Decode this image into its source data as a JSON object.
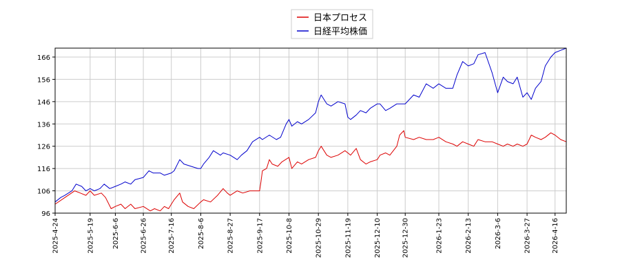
{
  "chart_data": {
    "type": "line",
    "title": "",
    "xlabel": "",
    "ylabel": "",
    "ylim": [
      96,
      170
    ],
    "y_ticks": [
      96,
      106,
      116,
      126,
      136,
      146,
      156,
      166
    ],
    "x_ticks": [
      "2025-4-24",
      "2025-5-19",
      "2025-6-6",
      "2025-6-26",
      "2025-7-16",
      "2025-8-6",
      "2025-8-27",
      "2025-9-17",
      "2025-10-8",
      "2025-10-29",
      "2025-11-19",
      "2025-12-10",
      "2025-12-30",
      "2026-1-23",
      "2026-2-13",
      "2026-3-6",
      "2026-3-27",
      "2026-4-16"
    ],
    "grid": true,
    "legend_position": "top-center",
    "series": [
      {
        "name": "日本プロセス",
        "color": "#dd0000",
        "points": [
          [
            "2025-4-24",
            100
          ],
          [
            "2025-5-1",
            103
          ],
          [
            "2025-5-8",
            106
          ],
          [
            "2025-5-12",
            105
          ],
          [
            "2025-5-16",
            104
          ],
          [
            "2025-5-19",
            106
          ],
          [
            "2025-5-22",
            104
          ],
          [
            "2025-5-27",
            105
          ],
          [
            "2025-5-30",
            103
          ],
          [
            "2025-6-3",
            98
          ],
          [
            "2025-6-6",
            99
          ],
          [
            "2025-6-10",
            100
          ],
          [
            "2025-6-13",
            98
          ],
          [
            "2025-6-17",
            100
          ],
          [
            "2025-6-20",
            98
          ],
          [
            "2025-6-26",
            99
          ],
          [
            "2025-7-1",
            97
          ],
          [
            "2025-7-4",
            98
          ],
          [
            "2025-7-8",
            97
          ],
          [
            "2025-7-11",
            99
          ],
          [
            "2025-7-14",
            98
          ],
          [
            "2025-7-16",
            100
          ],
          [
            "2025-7-18",
            102
          ],
          [
            "2025-7-22",
            105
          ],
          [
            "2025-7-24",
            101
          ],
          [
            "2025-7-28",
            99
          ],
          [
            "2025-8-1",
            98
          ],
          [
            "2025-8-6",
            101
          ],
          [
            "2025-8-8",
            102
          ],
          [
            "2025-8-13",
            101
          ],
          [
            "2025-8-18",
            104
          ],
          [
            "2025-8-22",
            107
          ],
          [
            "2025-8-25",
            105
          ],
          [
            "2025-8-27",
            104
          ],
          [
            "2025-9-1",
            106
          ],
          [
            "2025-9-5",
            105
          ],
          [
            "2025-9-10",
            106
          ],
          [
            "2025-9-15",
            106
          ],
          [
            "2025-9-17",
            106
          ],
          [
            "2025-9-18",
            110
          ],
          [
            "2025-9-19",
            115
          ],
          [
            "2025-9-22",
            116
          ],
          [
            "2025-9-24",
            120
          ],
          [
            "2025-9-26",
            118
          ],
          [
            "2025-9-30",
            117
          ],
          [
            "2025-10-3",
            119
          ],
          [
            "2025-10-8",
            121
          ],
          [
            "2025-10-10",
            116
          ],
          [
            "2025-10-14",
            119
          ],
          [
            "2025-10-17",
            118
          ],
          [
            "2025-10-22",
            120
          ],
          [
            "2025-10-27",
            121
          ],
          [
            "2025-10-29",
            124
          ],
          [
            "2025-10-31",
            126
          ],
          [
            "2025-11-4",
            122
          ],
          [
            "2025-11-7",
            121
          ],
          [
            "2025-11-12",
            122
          ],
          [
            "2025-11-17",
            124
          ],
          [
            "2025-11-19",
            123
          ],
          [
            "2025-11-21",
            122
          ],
          [
            "2025-11-25",
            125
          ],
          [
            "2025-11-28",
            120
          ],
          [
            "2025-12-2",
            118
          ],
          [
            "2025-12-5",
            119
          ],
          [
            "2025-12-10",
            120
          ],
          [
            "2025-12-12",
            122
          ],
          [
            "2025-12-16",
            123
          ],
          [
            "2025-12-19",
            122
          ],
          [
            "2025-12-24",
            126
          ],
          [
            "2025-12-26",
            131
          ],
          [
            "2025-12-29",
            133
          ],
          [
            "2025-12-30",
            130
          ],
          [
            "2026-1-5",
            129
          ],
          [
            "2026-1-9",
            130
          ],
          [
            "2026-1-14",
            129
          ],
          [
            "2026-1-19",
            129
          ],
          [
            "2026-1-23",
            130
          ],
          [
            "2026-1-28",
            128
          ],
          [
            "2026-2-2",
            127
          ],
          [
            "2026-2-5",
            126
          ],
          [
            "2026-2-9",
            128
          ],
          [
            "2026-2-13",
            127
          ],
          [
            "2026-2-17",
            126
          ],
          [
            "2026-2-20",
            129
          ],
          [
            "2026-2-25",
            128
          ],
          [
            "2026-3-2",
            128
          ],
          [
            "2026-3-6",
            127
          ],
          [
            "2026-3-10",
            126
          ],
          [
            "2026-3-13",
            127
          ],
          [
            "2026-3-17",
            126
          ],
          [
            "2026-3-20",
            127
          ],
          [
            "2026-3-24",
            126
          ],
          [
            "2026-3-27",
            127
          ],
          [
            "2026-3-30",
            131
          ],
          [
            "2026-4-2",
            130
          ],
          [
            "2026-4-6",
            129
          ],
          [
            "2026-4-9",
            130
          ],
          [
            "2026-4-13",
            132
          ],
          [
            "2026-4-16",
            131
          ],
          [
            "2026-4-20",
            129
          ],
          [
            "2026-4-24",
            128
          ]
        ]
      },
      {
        "name": "日経平均株価",
        "color": "#0000cc",
        "points": [
          [
            "2025-4-24",
            101
          ],
          [
            "2025-4-28",
            103
          ],
          [
            "2025-5-1",
            104
          ],
          [
            "2025-5-6",
            106
          ],
          [
            "2025-5-9",
            109
          ],
          [
            "2025-5-13",
            108
          ],
          [
            "2025-5-16",
            106
          ],
          [
            "2025-5-19",
            107
          ],
          [
            "2025-5-22",
            106
          ],
          [
            "2025-5-26",
            107
          ],
          [
            "2025-5-29",
            109
          ],
          [
            "2025-6-2",
            107
          ],
          [
            "2025-6-6",
            108
          ],
          [
            "2025-6-10",
            109
          ],
          [
            "2025-6-13",
            110
          ],
          [
            "2025-6-17",
            109
          ],
          [
            "2025-6-20",
            111
          ],
          [
            "2025-6-26",
            112
          ],
          [
            "2025-6-30",
            115
          ],
          [
            "2025-7-3",
            114
          ],
          [
            "2025-7-8",
            114
          ],
          [
            "2025-7-11",
            113
          ],
          [
            "2025-7-16",
            114
          ],
          [
            "2025-7-18",
            115
          ],
          [
            "2025-7-22",
            120
          ],
          [
            "2025-7-25",
            118
          ],
          [
            "2025-7-30",
            117
          ],
          [
            "2025-8-4",
            116
          ],
          [
            "2025-8-6",
            116
          ],
          [
            "2025-8-8",
            118
          ],
          [
            "2025-8-12",
            121
          ],
          [
            "2025-8-15",
            124
          ],
          [
            "2025-8-20",
            122
          ],
          [
            "2025-8-22",
            123
          ],
          [
            "2025-8-27",
            122
          ],
          [
            "2025-9-1",
            120
          ],
          [
            "2025-9-4",
            122
          ],
          [
            "2025-9-8",
            124
          ],
          [
            "2025-9-12",
            128
          ],
          [
            "2025-9-17",
            130
          ],
          [
            "2025-9-19",
            129
          ],
          [
            "2025-9-24",
            131
          ],
          [
            "2025-9-29",
            129
          ],
          [
            "2025-10-2",
            130
          ],
          [
            "2025-10-6",
            136
          ],
          [
            "2025-10-8",
            138
          ],
          [
            "2025-10-10",
            135
          ],
          [
            "2025-10-14",
            137
          ],
          [
            "2025-10-17",
            136
          ],
          [
            "2025-10-22",
            138
          ],
          [
            "2025-10-27",
            141
          ],
          [
            "2025-10-29",
            146
          ],
          [
            "2025-10-31",
            149
          ],
          [
            "2025-11-4",
            145
          ],
          [
            "2025-11-7",
            144
          ],
          [
            "2025-11-12",
            146
          ],
          [
            "2025-11-17",
            145
          ],
          [
            "2025-11-19",
            139
          ],
          [
            "2025-11-21",
            138
          ],
          [
            "2025-11-25",
            140
          ],
          [
            "2025-11-28",
            142
          ],
          [
            "2025-12-2",
            141
          ],
          [
            "2025-12-5",
            143
          ],
          [
            "2025-12-10",
            145
          ],
          [
            "2025-12-12",
            145
          ],
          [
            "2025-12-16",
            142
          ],
          [
            "2025-12-19",
            143
          ],
          [
            "2025-12-24",
            145
          ],
          [
            "2025-12-30",
            145
          ],
          [
            "2026-1-5",
            149
          ],
          [
            "2026-1-9",
            148
          ],
          [
            "2026-1-14",
            154
          ],
          [
            "2026-1-19",
            152
          ],
          [
            "2026-1-23",
            154
          ],
          [
            "2026-1-28",
            152
          ],
          [
            "2026-2-2",
            152
          ],
          [
            "2026-2-5",
            158
          ],
          [
            "2026-2-9",
            164
          ],
          [
            "2026-2-13",
            162
          ],
          [
            "2026-2-17",
            163
          ],
          [
            "2026-2-20",
            167
          ],
          [
            "2026-2-25",
            168
          ],
          [
            "2026-3-2",
            159
          ],
          [
            "2026-3-6",
            150
          ],
          [
            "2026-3-10",
            157
          ],
          [
            "2026-3-13",
            155
          ],
          [
            "2026-3-17",
            154
          ],
          [
            "2026-3-20",
            157
          ],
          [
            "2026-3-24",
            148
          ],
          [
            "2026-3-27",
            150
          ],
          [
            "2026-3-30",
            147
          ],
          [
            "2026-4-2",
            152
          ],
          [
            "2026-4-6",
            155
          ],
          [
            "2026-4-9",
            162
          ],
          [
            "2026-4-13",
            166
          ],
          [
            "2026-4-16",
            168
          ],
          [
            "2026-4-20",
            169
          ],
          [
            "2026-4-24",
            170
          ]
        ]
      }
    ]
  }
}
